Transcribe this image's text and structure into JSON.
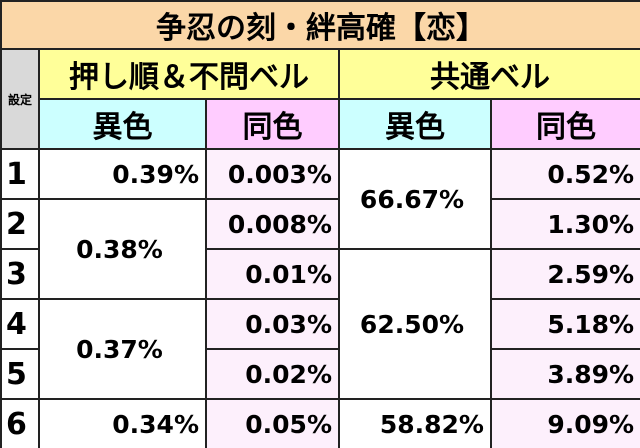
{
  "title": "争忍の刻・絆高確【恋】",
  "header": {
    "setting": "設定",
    "group1": "押し順＆不問ベル",
    "group2": "共通ベル",
    "sub": [
      "異色",
      "同色",
      "異色",
      "同色"
    ]
  },
  "table": {
    "settings": [
      "1",
      "2",
      "3",
      "4",
      "5",
      "6"
    ],
    "oshijun_ishoku": [
      "0.39%",
      "0.38%",
      "0.37%",
      "0.34%"
    ],
    "oshijun_doushoku": [
      "0.003%",
      "0.008%",
      "0.01%",
      "0.03%",
      "0.02%",
      "0.05%"
    ],
    "kyotsu_ishoku": [
      "66.67%",
      "62.50%",
      "58.82%"
    ],
    "kyotsu_doushoku": [
      "0.52%",
      "1.30%",
      "2.59%",
      "5.18%",
      "3.89%",
      "9.09%"
    ]
  }
}
